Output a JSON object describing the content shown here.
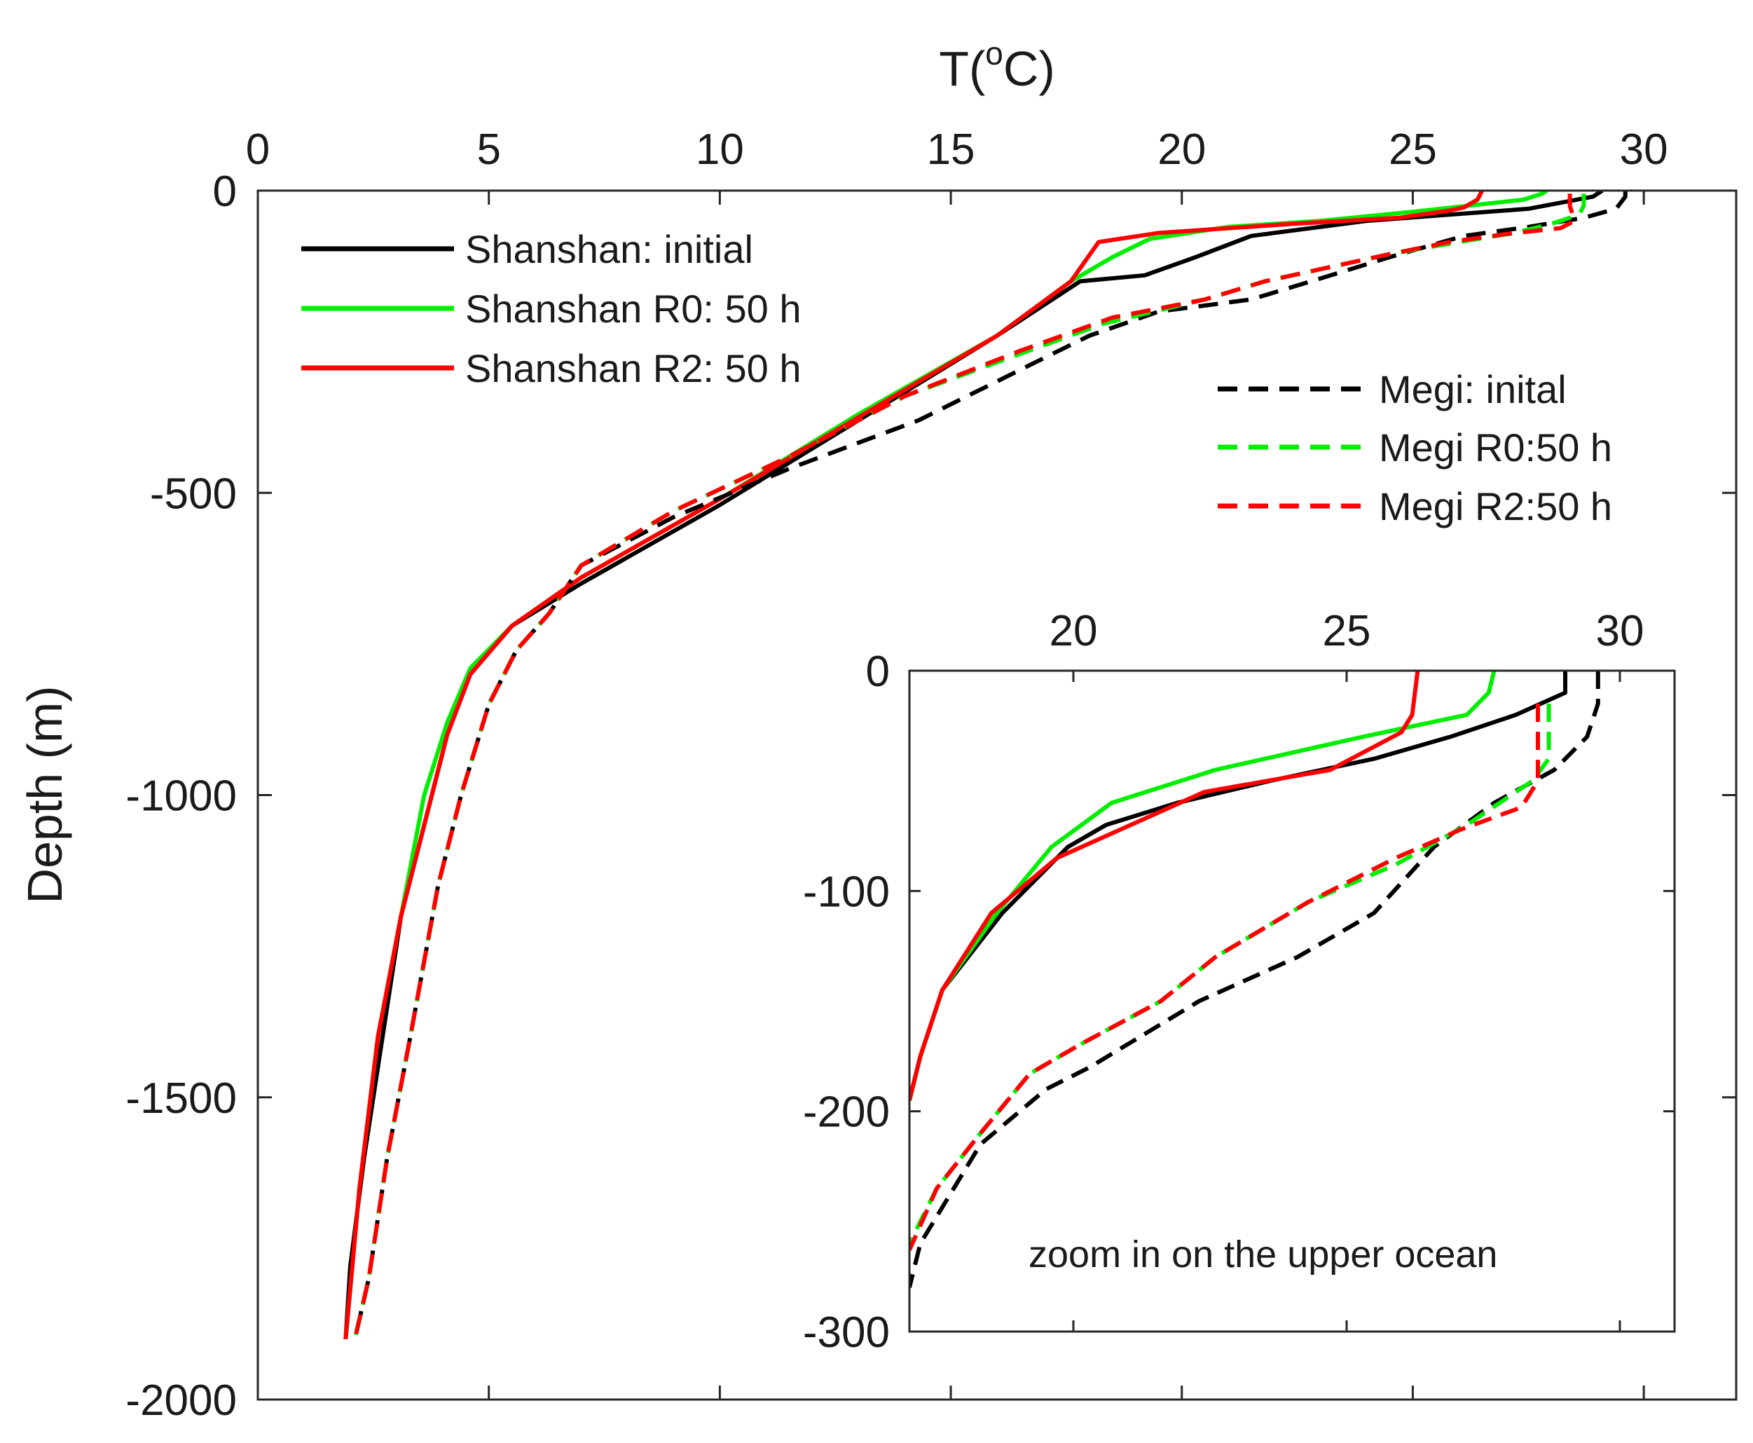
{
  "chart_data": [
    {
      "type": "line",
      "title": "",
      "xlabel": "T(",
      "xlabel_sup": "o",
      "xlabel_end": "C)",
      "ylabel": "Depth (m)",
      "xlim": [
        0,
        32
      ],
      "ylim": [
        -2000,
        0
      ],
      "xticks": [
        0,
        5,
        10,
        15,
        20,
        25,
        30
      ],
      "xtick_labels": [
        "0",
        "5",
        "10",
        "15",
        "20",
        "25",
        "30"
      ],
      "yticks": [
        0,
        -500,
        -1000,
        -1500,
        -2000
      ],
      "ytick_labels": [
        "0",
        "-500",
        "-1000",
        "-1500",
        "-2000"
      ],
      "legend_position": "top-left and top-right",
      "series": [
        {
          "name": "Shanshan: initial",
          "color": "#000000",
          "style": "solid",
          "points": [
            [
              29.1,
              0
            ],
            [
              28.9,
              -10
            ],
            [
              27.5,
              -30
            ],
            [
              24,
              -50
            ],
            [
              21.5,
              -75
            ],
            [
              20.3,
              -110
            ],
            [
              19.2,
              -140
            ],
            [
              17.8,
              -150
            ],
            [
              16,
              -240
            ],
            [
              13,
              -380
            ],
            [
              10,
              -520
            ],
            [
              7,
              -650
            ],
            [
              5.5,
              -720
            ],
            [
              4.6,
              -800
            ],
            [
              4.1,
              -900
            ],
            [
              3.6,
              -1050
            ],
            [
              3.1,
              -1200
            ],
            [
              2.7,
              -1400
            ],
            [
              2.3,
              -1600
            ],
            [
              2,
              -1780
            ],
            [
              1.9,
              -1900
            ]
          ]
        },
        {
          "name": "Shanshan R0: 50 h",
          "color": "#00ee00",
          "style": "solid",
          "points": [
            [
              27.9,
              0
            ],
            [
              27.8,
              -5
            ],
            [
              27.4,
              -15
            ],
            [
              25,
              -35
            ],
            [
              23,
              -50
            ],
            [
              21,
              -60
            ],
            [
              19.3,
              -80
            ],
            [
              18.5,
              -110
            ],
            [
              17.6,
              -150
            ],
            [
              16,
              -240
            ],
            [
              13,
              -370
            ],
            [
              10,
              -510
            ],
            [
              7,
              -640
            ],
            [
              5.5,
              -720
            ],
            [
              4.6,
              -790
            ],
            [
              4.1,
              -880
            ],
            [
              3.6,
              -1000
            ],
            [
              3.1,
              -1200
            ],
            [
              2.6,
              -1400
            ],
            [
              2.2,
              -1650
            ],
            [
              1.9,
              -1900
            ]
          ]
        },
        {
          "name": "Shanshan R2: 50 h",
          "color": "#ff0000",
          "style": "solid",
          "points": [
            [
              26.5,
              0
            ],
            [
              26.4,
              -15
            ],
            [
              26.1,
              -28
            ],
            [
              25.8,
              -33
            ],
            [
              24.7,
              -45
            ],
            [
              22.4,
              -55
            ],
            [
              19.5,
              -70
            ],
            [
              18.2,
              -85
            ],
            [
              17.6,
              -150
            ],
            [
              16,
              -240
            ],
            [
              13,
              -375
            ],
            [
              10,
              -510
            ],
            [
              7,
              -640
            ],
            [
              5.5,
              -720
            ],
            [
              4.6,
              -800
            ],
            [
              4.1,
              -900
            ],
            [
              3.6,
              -1050
            ],
            [
              3.1,
              -1200
            ],
            [
              2.6,
              -1400
            ],
            [
              2.2,
              -1650
            ],
            [
              1.9,
              -1900
            ]
          ]
        },
        {
          "name": "Megi: inital",
          "color": "#000000",
          "style": "dashed",
          "points": [
            [
              29.6,
              0
            ],
            [
              29.6,
              -10
            ],
            [
              29.4,
              -30
            ],
            [
              28.7,
              -45
            ],
            [
              27.5,
              -60
            ],
            [
              26.1,
              -75
            ],
            [
              24.5,
              -110
            ],
            [
              22.8,
              -150
            ],
            [
              21.5,
              -180
            ],
            [
              19.5,
              -200
            ],
            [
              18,
              -240
            ],
            [
              17.2,
              -270
            ],
            [
              14.3,
              -380
            ],
            [
              11.5,
              -460
            ],
            [
              9,
              -540
            ],
            [
              7,
              -620
            ],
            [
              6.3,
              -700
            ],
            [
              5.6,
              -760
            ],
            [
              5,
              -850
            ],
            [
              4.4,
              -1000
            ],
            [
              3.9,
              -1150
            ],
            [
              3.3,
              -1400
            ],
            [
              2.8,
              -1600
            ],
            [
              2.4,
              -1800
            ],
            [
              2.1,
              -1900
            ]
          ]
        },
        {
          "name": "Megi R0:50 h",
          "color": "#00ee00",
          "style": "dashed",
          "points": [
            [
              28.7,
              -5
            ],
            [
              28.7,
              -25
            ],
            [
              28.6,
              -40
            ],
            [
              28,
              -55
            ],
            [
              27.2,
              -70
            ],
            [
              26,
              -85
            ],
            [
              24.5,
              -105
            ],
            [
              23,
              -130
            ],
            [
              21.8,
              -150
            ],
            [
              20.5,
              -180
            ],
            [
              18.3,
              -220
            ],
            [
              16.5,
              -270
            ],
            [
              14,
              -340
            ],
            [
              11.5,
              -440
            ],
            [
              9,
              -530
            ],
            [
              7,
              -620
            ],
            [
              6.3,
              -700
            ],
            [
              5.6,
              -760
            ],
            [
              5,
              -850
            ],
            [
              4.4,
              -1000
            ],
            [
              3.9,
              -1150
            ],
            [
              3.3,
              -1400
            ],
            [
              2.8,
              -1600
            ],
            [
              2.4,
              -1800
            ],
            [
              2.1,
              -1900
            ]
          ]
        },
        {
          "name": "Megi R2:50 h",
          "color": "#ff0000",
          "style": "dashed",
          "points": [
            [
              28.4,
              -5
            ],
            [
              28.4,
              -25
            ],
            [
              28.5,
              -50
            ],
            [
              28.2,
              -62
            ],
            [
              27,
              -72
            ],
            [
              25.8,
              -85
            ],
            [
              24.5,
              -105
            ],
            [
              23,
              -130
            ],
            [
              21.8,
              -150
            ],
            [
              20.5,
              -180
            ],
            [
              18.5,
              -210
            ],
            [
              16.5,
              -265
            ],
            [
              14,
              -340
            ],
            [
              11.5,
              -440
            ],
            [
              9,
              -530
            ],
            [
              7,
              -620
            ],
            [
              6.3,
              -700
            ],
            [
              5.6,
              -760
            ],
            [
              5,
              -850
            ],
            [
              4.4,
              -1000
            ],
            [
              3.9,
              -1150
            ],
            [
              3.3,
              -1400
            ],
            [
              2.8,
              -1600
            ],
            [
              2.4,
              -1800
            ],
            [
              2.1,
              -1900
            ]
          ]
        }
      ]
    },
    {
      "type": "line",
      "title": "",
      "annotation": "zoom in on the upper ocean",
      "xlim": [
        17,
        31
      ],
      "ylim": [
        -300,
        0
      ],
      "xticks": [
        20,
        25,
        30
      ],
      "xtick_labels": [
        "20",
        "25",
        "30"
      ],
      "yticks": [
        0,
        -100,
        -200,
        -300
      ],
      "ytick_labels": [
        "0",
        "-100",
        "-200",
        "-300"
      ],
      "series": [
        {
          "name": "Shanshan: initial",
          "color": "#000000",
          "style": "solid",
          "points": [
            [
              29,
              0
            ],
            [
              29,
              -10
            ],
            [
              28.1,
              -20
            ],
            [
              26.9,
              -30
            ],
            [
              25.5,
              -40
            ],
            [
              23.6,
              -50
            ],
            [
              21.9,
              -60
            ],
            [
              20.6,
              -70
            ],
            [
              19.9,
              -80
            ],
            [
              18.7,
              -110
            ],
            [
              17.6,
              -145
            ],
            [
              17.2,
              -175
            ],
            [
              17,
              -195
            ]
          ]
        },
        {
          "name": "Shanshan R0: 50 h",
          "color": "#00ee00",
          "style": "solid",
          "points": [
            [
              27.7,
              0
            ],
            [
              27.6,
              -10
            ],
            [
              27.2,
              -20
            ],
            [
              25.3,
              -30
            ],
            [
              22.6,
              -45
            ],
            [
              20.7,
              -60
            ],
            [
              19.6,
              -80
            ],
            [
              18.6,
              -110
            ],
            [
              17.6,
              -145
            ],
            [
              17.2,
              -175
            ],
            [
              17,
              -195
            ]
          ]
        },
        {
          "name": "Shanshan R2: 50 h",
          "color": "#ff0000",
          "style": "solid",
          "points": [
            [
              26.3,
              0
            ],
            [
              26.2,
              -20
            ],
            [
              26,
              -28
            ],
            [
              24.7,
              -45
            ],
            [
              22.4,
              -55
            ],
            [
              19.7,
              -85
            ],
            [
              18.5,
              -110
            ],
            [
              17.6,
              -145
            ],
            [
              17.2,
              -175
            ],
            [
              17,
              -195
            ]
          ]
        },
        {
          "name": "Megi: inital",
          "color": "#000000",
          "style": "dashed",
          "points": [
            [
              29.6,
              0
            ],
            [
              29.6,
              -15
            ],
            [
              29.4,
              -30
            ],
            [
              28.8,
              -45
            ],
            [
              27.7,
              -60
            ],
            [
              26.6,
              -80
            ],
            [
              25.5,
              -110
            ],
            [
              24.1,
              -130
            ],
            [
              22.3,
              -150
            ],
            [
              20.3,
              -180
            ],
            [
              19.5,
              -190
            ],
            [
              18.3,
              -215
            ],
            [
              17.2,
              -260
            ],
            [
              17,
              -280
            ]
          ]
        },
        {
          "name": "Megi R0:50 h",
          "color": "#00ee00",
          "style": "dashed",
          "points": [
            [
              28.7,
              -15
            ],
            [
              28.7,
              -30
            ],
            [
              28.7,
              -40
            ],
            [
              28.4,
              -50
            ],
            [
              27.2,
              -70
            ],
            [
              25.9,
              -88
            ],
            [
              24.3,
              -105
            ],
            [
              22.6,
              -130
            ],
            [
              21.6,
              -150
            ],
            [
              20.1,
              -170
            ],
            [
              19.2,
              -183
            ],
            [
              18.3,
              -210
            ],
            [
              17.5,
              -235
            ],
            [
              17,
              -260
            ]
          ]
        },
        {
          "name": "Megi R2:50 h",
          "color": "#ff0000",
          "style": "dashed",
          "points": [
            [
              28.5,
              -15
            ],
            [
              28.5,
              -30
            ],
            [
              28.5,
              -50
            ],
            [
              28.2,
              -62
            ],
            [
              27.1,
              -72
            ],
            [
              25.9,
              -85
            ],
            [
              24.3,
              -105
            ],
            [
              22.6,
              -130
            ],
            [
              21.6,
              -150
            ],
            [
              20.1,
              -170
            ],
            [
              19.2,
              -183
            ],
            [
              18.3,
              -210
            ],
            [
              17.5,
              -235
            ],
            [
              17,
              -263
            ]
          ]
        }
      ]
    }
  ]
}
